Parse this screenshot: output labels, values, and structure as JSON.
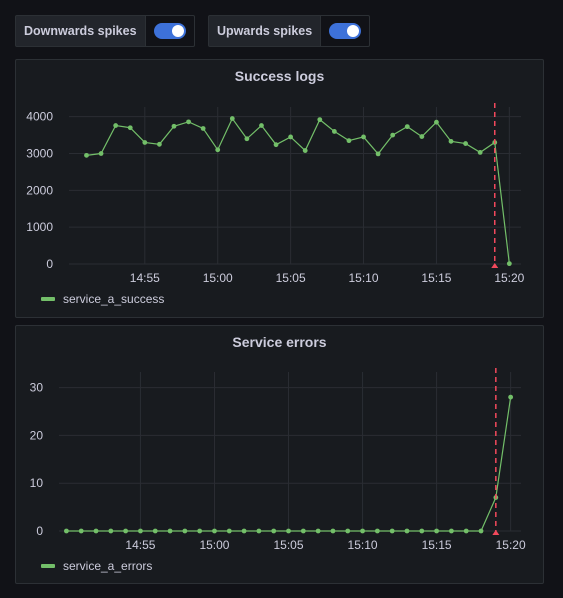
{
  "toggles": [
    {
      "label": "Downwards spikes",
      "on": true
    },
    {
      "label": "Upwards spikes",
      "on": true
    }
  ],
  "colors": {
    "series": "#73bf69",
    "annotation": "#f2495c",
    "accent": "#3d71d9"
  },
  "charts": [
    {
      "title": "Success logs",
      "legend": "service_a_success",
      "y_ticks": [
        "0",
        "1000",
        "2000",
        "3000",
        "4000"
      ],
      "x_ticks": [
        "14:55",
        "15:00",
        "15:05",
        "15:10",
        "15:15",
        "15:20"
      ]
    },
    {
      "title": "Service errors",
      "legend": "service_a_errors",
      "y_ticks": [
        "0",
        "10",
        "20",
        "30"
      ],
      "x_ticks": [
        "14:55",
        "15:00",
        "15:05",
        "15:10",
        "15:15",
        "15:20"
      ]
    }
  ],
  "chart_data": [
    {
      "type": "line",
      "title": "Success logs",
      "x_unit": "time",
      "ylim": [
        0,
        4100
      ],
      "y_tick_values": [
        0,
        1000,
        2000,
        3000,
        4000
      ],
      "x_tick_minutes": [
        55,
        60,
        65,
        70,
        75,
        80
      ],
      "xlim_minutes": [
        49.8,
        80.8
      ],
      "grid": true,
      "legend_position": "bottom-left",
      "annotation_minute": 79,
      "series": [
        {
          "name": "service_a_success",
          "x_minutes": [
            51,
            52,
            53,
            54,
            55,
            56,
            57,
            58,
            59,
            60,
            61,
            62,
            63,
            64,
            65,
            66,
            67,
            68,
            69,
            70,
            71,
            72,
            73,
            74,
            75,
            76,
            77,
            78,
            79,
            80
          ],
          "values": [
            2950,
            3000,
            3760,
            3700,
            3300,
            3250,
            3740,
            3860,
            3680,
            3100,
            3950,
            3400,
            3760,
            3240,
            3450,
            3080,
            3920,
            3600,
            3350,
            3450,
            2990,
            3500,
            3730,
            3460,
            3850,
            3330,
            3270,
            3030,
            3300,
            10
          ]
        }
      ]
    },
    {
      "type": "line",
      "title": "Service errors",
      "x_unit": "time",
      "ylim": [
        0,
        32
      ],
      "y_tick_values": [
        0,
        10,
        20,
        30
      ],
      "x_tick_minutes": [
        55,
        60,
        65,
        70,
        75,
        80
      ],
      "xlim_minutes": [
        49.5,
        80.7
      ],
      "grid": true,
      "legend_position": "bottom-left",
      "annotation_minute": 79,
      "series": [
        {
          "name": "service_a_errors",
          "x_minutes": [
            50,
            51,
            52,
            53,
            54,
            55,
            56,
            57,
            58,
            59,
            60,
            61,
            62,
            63,
            64,
            65,
            66,
            67,
            68,
            69,
            70,
            71,
            72,
            73,
            74,
            75,
            76,
            77,
            78,
            79,
            80
          ],
          "values": [
            0,
            0,
            0,
            0,
            0,
            0,
            0,
            0,
            0,
            0,
            0,
            0,
            0,
            0,
            0,
            0,
            0,
            0,
            0,
            0,
            0,
            0,
            0,
            0,
            0,
            0,
            0,
            0,
            0,
            7,
            28
          ]
        }
      ]
    }
  ]
}
